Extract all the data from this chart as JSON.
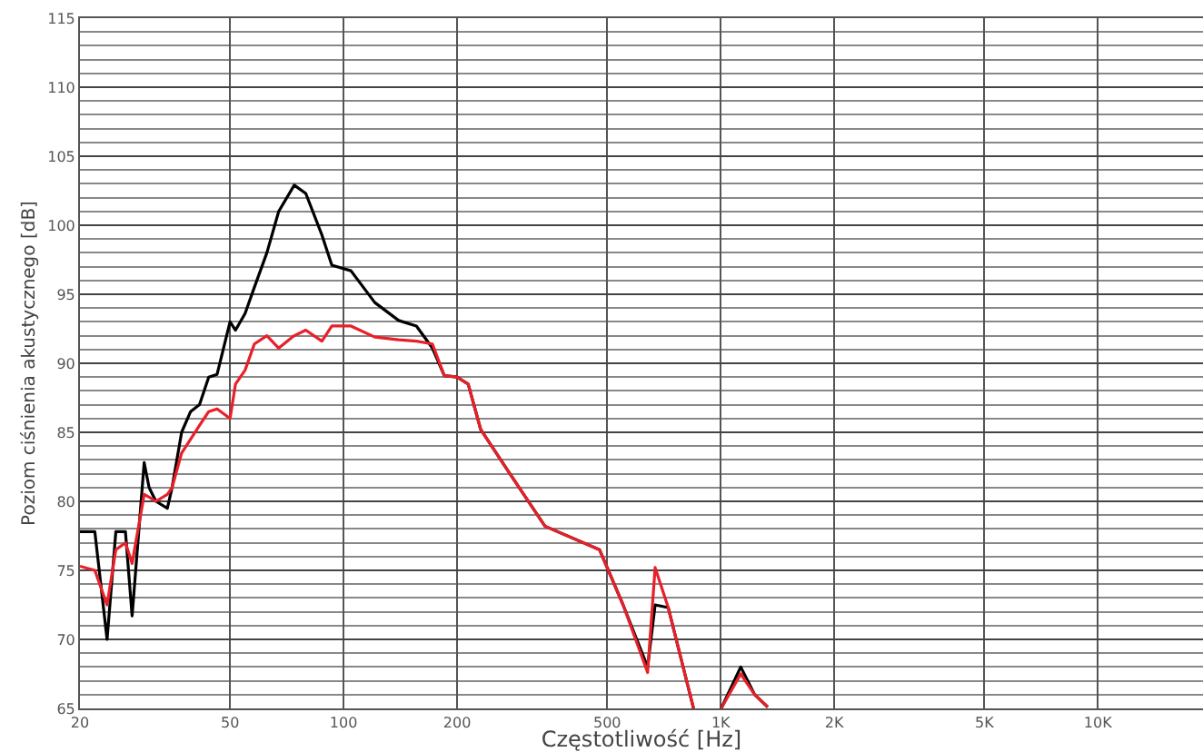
{
  "chart_data": {
    "type": "line",
    "xlabel": "Częstotliwość [Hz]",
    "ylabel": "Poziom ciśnienia akustycznego [dB]",
    "log": "x",
    "grid": true,
    "xlim": [
      20,
      19000
    ],
    "xticks": [
      20,
      50,
      100,
      200,
      500,
      {
        "value": 1000,
        "label": "1K"
      },
      {
        "value": 2000,
        "label": "2K"
      },
      {
        "value": 5000,
        "label": "5K"
      },
      {
        "value": 10000,
        "label": "10K"
      }
    ],
    "ylim": [
      65,
      115
    ],
    "yticks": [
      65,
      70,
      75,
      80,
      85,
      90,
      95,
      100,
      105,
      110,
      115
    ],
    "x": [
      20,
      21.9,
      23.6,
      24.9,
      26.4,
      27.5,
      29.6,
      30.5,
      31.8,
      34.1,
      35.1,
      37.2,
      39.3,
      41.5,
      43.9,
      46.2,
      50,
      51.7,
      54.8,
      58,
      62.6,
      67.3,
      74,
      79.4,
      87.6,
      93.1,
      104.6,
      121,
      140,
      156,
      172,
      185,
      200,
      214,
      231,
      273,
      342,
      477,
      551,
      640,
      670,
      726,
      847,
      900,
      1003,
      1130,
      1230,
      1333
    ],
    "series": [
      {
        "color": "#000000",
        "values": [
          77.8,
          77.8,
          70,
          77.8,
          77.8,
          71.7,
          82.8,
          81,
          80,
          79.5,
          81,
          85,
          86.5,
          87,
          89,
          89.2,
          93,
          92.4,
          93.6,
          95.5,
          98,
          101,
          102.9,
          102.3,
          99.3,
          97.1,
          96.7,
          94.4,
          93.1,
          92.7,
          91.1,
          89.1,
          89,
          88.5,
          85.2,
          82.2,
          78.2,
          76.5,
          72.5,
          68,
          72.5,
          72.3,
          65,
          null,
          65,
          68,
          66,
          65.1
        ]
      },
      {
        "color": "#e8202a",
        "values": [
          75.3,
          75,
          72.5,
          76.5,
          77,
          75.5,
          80.5,
          80.3,
          80,
          80.5,
          81,
          83.5,
          84.5,
          85.5,
          86.5,
          86.7,
          86,
          88.5,
          89.5,
          91.4,
          92,
          91.1,
          92,
          92.4,
          91.6,
          92.7,
          92.7,
          91.9,
          91.7,
          91.6,
          91.4,
          89.1,
          89,
          88.5,
          85.2,
          82.2,
          78.2,
          76.5,
          72.5,
          67.6,
          75.2,
          72.3,
          65,
          null,
          65,
          67.5,
          66,
          65.1
        ]
      }
    ]
  }
}
